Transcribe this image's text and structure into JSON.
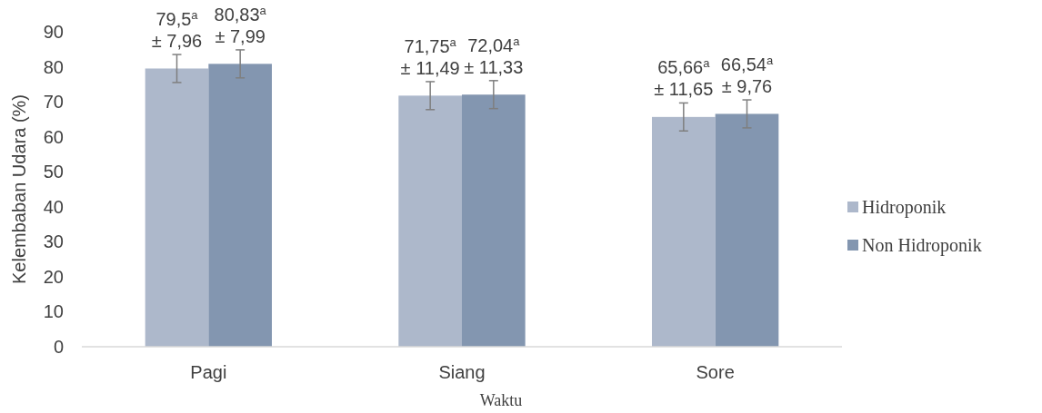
{
  "chart_data": {
    "type": "bar",
    "xlabel": "Waktu",
    "ylabel": "Kelembaban Udara (%)",
    "categories": [
      "Pagi",
      "Siang",
      "Sore"
    ],
    "series": [
      {
        "name": "Hidroponik",
        "color": "#adb8cb",
        "values": [
          79.5,
          71.75,
          65.66
        ],
        "errors": [
          4,
          4,
          4
        ],
        "value_labels": [
          "79,5$^{a}$\n± 7,96",
          "71,75$^{a}$\n± 11,49",
          "65,66$^{a}$\n± 11,65"
        ]
      },
      {
        "name": "Non Hidroponik",
        "color": "#8396b0",
        "values": [
          80.83,
          72.04,
          66.54
        ],
        "errors": [
          4,
          4,
          4
        ],
        "value_labels": [
          "80,83$^{a}$\n± 7,99",
          "72,04$^{a}$\n± 11,33",
          "66,54$^{a}$\n± 9,76"
        ]
      }
    ],
    "ylim": [
      0,
      90
    ],
    "yticks": [
      0,
      10,
      20,
      30,
      40,
      50,
      60,
      70,
      80,
      90
    ],
    "grid": false,
    "legend": "right"
  }
}
